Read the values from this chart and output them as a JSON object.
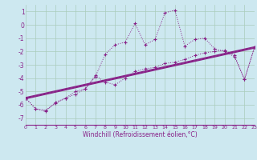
{
  "background_color": "#cde8f0",
  "grid_color": "#aaccbb",
  "line_color": "#882288",
  "xlabel": "Windchill (Refroidissement éolien,°C)",
  "xlim": [
    0,
    23
  ],
  "ylim": [
    -7.5,
    1.5
  ],
  "yticks": [
    -7,
    -6,
    -5,
    -4,
    -3,
    -2,
    -1,
    0,
    1
  ],
  "xticks": [
    0,
    1,
    2,
    3,
    4,
    5,
    6,
    7,
    8,
    9,
    10,
    11,
    12,
    13,
    14,
    15,
    16,
    17,
    18,
    19,
    20,
    21,
    22,
    23
  ],
  "jagged1_x": [
    0,
    1,
    2,
    3,
    4,
    5,
    6,
    7,
    8,
    9,
    10,
    11,
    12,
    13,
    14,
    15,
    16,
    17,
    18,
    19,
    20,
    21,
    22,
    23
  ],
  "jagged1_y": [
    -5.5,
    -6.3,
    -6.5,
    -5.8,
    -5.5,
    -5.2,
    -4.8,
    -3.9,
    -2.2,
    -1.5,
    -1.3,
    0.1,
    -1.5,
    -1.1,
    0.9,
    1.1,
    -1.6,
    -1.1,
    -1.0,
    -1.8,
    -2.0,
    -2.4,
    -4.1,
    -1.7
  ],
  "jagged2_x": [
    0,
    1,
    2,
    3,
    4,
    5,
    6,
    7,
    8,
    9,
    10,
    11,
    12,
    13,
    14,
    15,
    16,
    17,
    18,
    19,
    20,
    21,
    22,
    23
  ],
  "jagged2_y": [
    -5.5,
    -6.3,
    -6.4,
    -5.9,
    -5.5,
    -5.0,
    -4.8,
    -3.8,
    -4.3,
    -4.5,
    -4.0,
    -3.5,
    -3.3,
    -3.2,
    -2.9,
    -2.8,
    -2.6,
    -2.3,
    -2.1,
    -2.0,
    -1.9,
    -2.3,
    -4.1,
    -1.7
  ],
  "line1": [
    [
      -5.5,
      -1.7
    ],
    [
      0,
      23
    ]
  ],
  "line2": [
    [
      -5.55,
      -1.75
    ],
    [
      0,
      23
    ]
  ],
  "line3": [
    [
      -5.6,
      -1.65
    ],
    [
      0,
      23
    ]
  ]
}
